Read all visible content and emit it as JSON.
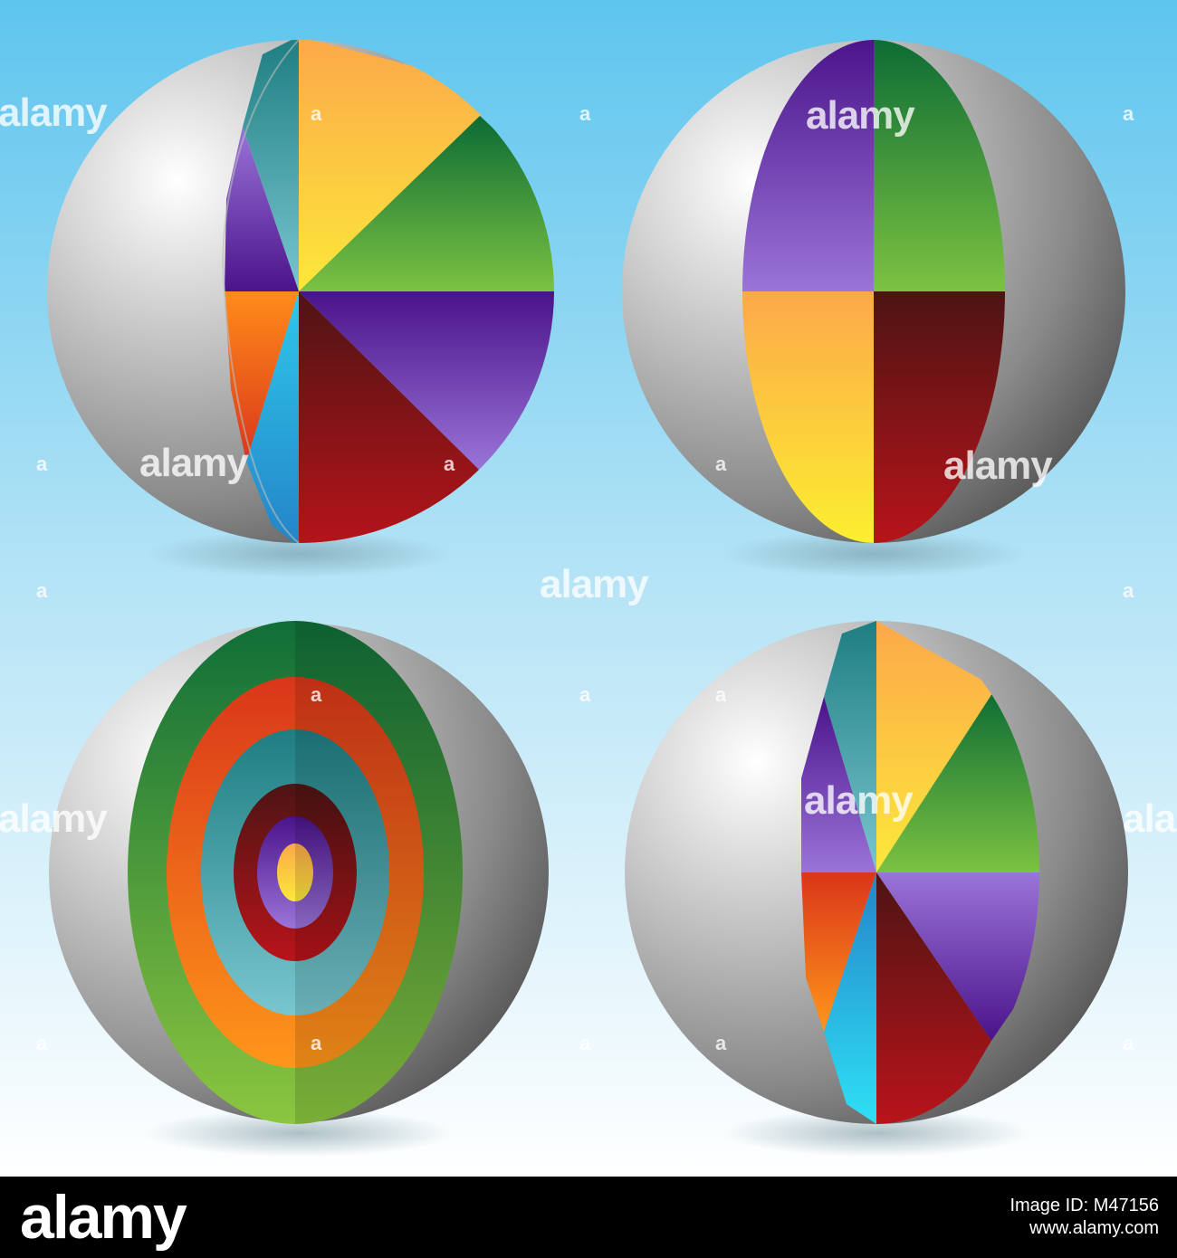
{
  "watermark": {
    "text": "alamy",
    "small_text": "a"
  },
  "footer": {
    "brand": "alamy",
    "image_id_label": "Image ID: M47156",
    "site": "www.alamy.com"
  },
  "colors": {
    "sky_top": "#5ec5ee",
    "sky_bottom": "#ffffff",
    "sphere_light": "#ffffff",
    "sphere_dark": "#4d4d4d",
    "orange": "#fcaa45",
    "green": "#0e7a3a",
    "purple": "#5b2393",
    "dark_red": "#7a1414",
    "teal": "#2a8f95",
    "sky_blue": "#2fa3d8",
    "yellow": "#f8e432"
  },
  "spheres": [
    {
      "name": "pie-sphere-sliced",
      "icon": "pie-sphere-icon"
    },
    {
      "name": "quarter-sphere",
      "icon": "quarter-sphere-icon"
    },
    {
      "name": "layered-sphere",
      "icon": "target-sphere-icon"
    },
    {
      "name": "pie-sphere-narrow",
      "icon": "pie-sphere-icon"
    }
  ]
}
